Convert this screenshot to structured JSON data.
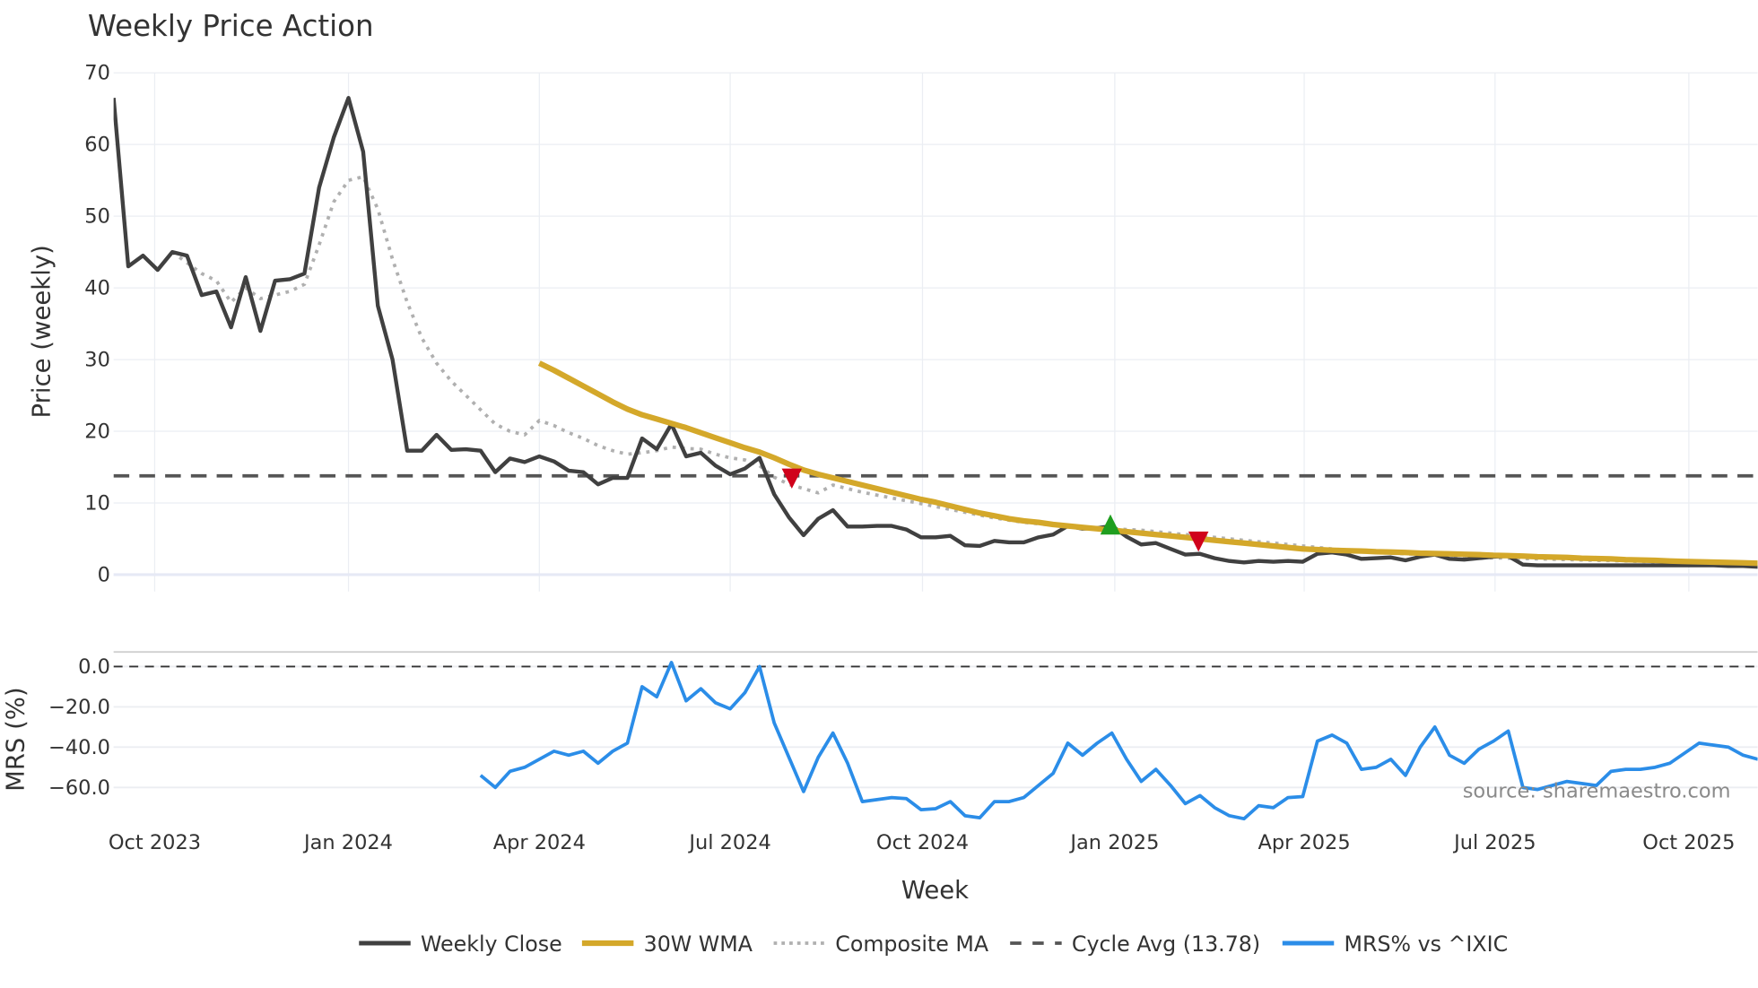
{
  "chart_data": [
    {
      "type": "line",
      "title": "Weekly Price Action",
      "xlabel": "Week",
      "ylabel": "Price (weekly)",
      "ylim": [
        0,
        70
      ],
      "yticks": [
        "0",
        "10",
        "20",
        "30",
        "40",
        "50",
        "60",
        "70"
      ],
      "ytick_values": [
        0,
        10,
        20,
        30,
        40,
        50,
        60,
        70
      ],
      "x_unit": "week index (0 = first weekly bar, mid-Sep 2023)",
      "n_weeks": 113,
      "xticks": [
        {
          "label": "Oct 2023",
          "week": 2.8
        },
        {
          "label": "Jan 2024",
          "week": 16.0
        },
        {
          "label": "Apr 2024",
          "week": 29.0
        },
        {
          "label": "Jul 2024",
          "week": 42.0
        },
        {
          "label": "Oct 2024",
          "week": 55.1
        },
        {
          "label": "Jan 2025",
          "week": 68.2
        },
        {
          "label": "Apr 2025",
          "week": 81.1
        },
        {
          "label": "Jul 2025",
          "week": 94.1
        },
        {
          "label": "Oct 2025",
          "week": 107.3
        }
      ],
      "series": [
        {
          "name": "Weekly Close",
          "color": "#404040",
          "start": 0,
          "values": [
            66.5,
            43,
            44.5,
            42.5,
            45,
            44.5,
            39,
            39.5,
            34.5,
            41.5,
            34,
            41,
            41.2,
            42,
            54,
            61,
            66.5,
            59,
            37.5,
            30,
            17.3,
            17.3,
            19.5,
            17.4,
            17.5,
            17.3,
            14.3,
            16.2,
            15.7,
            16.5,
            15.8,
            14.5,
            14.3,
            12.6,
            13.5,
            13.5,
            19,
            17.5,
            21,
            16.5,
            17,
            15.2,
            14,
            14.8,
            16.3,
            11.2,
            8,
            5.5,
            7.8,
            9,
            6.7,
            6.7,
            6.8,
            6.8,
            6.3,
            5.2,
            5.2,
            5.4,
            4.1,
            4,
            4.7,
            4.5,
            4.5,
            5.2,
            5.6,
            6.8,
            6.4,
            6.5,
            6.8,
            5.3,
            4.2,
            4.4,
            3.6,
            2.8,
            2.9,
            2.3,
            1.9,
            1.7,
            1.9,
            1.8,
            1.9,
            1.8,
            2.9,
            3.1,
            2.8,
            2.2,
            2.3,
            2.4,
            2.0,
            2.5,
            2.8,
            2.2,
            2.1,
            2.3,
            2.5,
            2.6,
            1.4,
            1.3,
            1.3,
            1.3,
            1.3,
            1.3,
            1.3,
            1.3,
            1.3,
            1.3,
            1.3,
            1.3,
            1.3,
            1.3,
            1.2,
            1.2,
            1.1
          ]
        },
        {
          "name": "30W WMA",
          "color": "#d4a82a",
          "start": 29,
          "values": [
            29.5,
            28.5,
            27.4,
            26.3,
            25.2,
            24.1,
            23.1,
            22.3,
            21.7,
            21.1,
            20.5,
            19.8,
            19.1,
            18.4,
            17.7,
            17.1,
            16.3,
            15.4,
            14.6,
            14.0,
            13.5,
            13.0,
            12.5,
            12.0,
            11.5,
            11.0,
            10.5,
            10.1,
            9.6,
            9.1,
            8.6,
            8.2,
            7.8,
            7.5,
            7.3,
            7.0,
            6.8,
            6.6,
            6.4,
            6.2,
            6.0,
            5.8,
            5.6,
            5.4,
            5.2,
            5.0,
            4.8,
            4.6,
            4.4,
            4.2,
            4.0,
            3.8,
            3.6,
            3.5,
            3.4,
            3.35,
            3.3,
            3.2,
            3.15,
            3.1,
            3.0,
            2.95,
            2.9,
            2.85,
            2.8,
            2.7,
            2.65,
            2.6,
            2.5,
            2.45,
            2.4,
            2.3,
            2.25,
            2.2,
            2.1,
            2.05,
            2.0,
            1.9,
            1.85,
            1.8,
            1.75,
            1.7,
            1.65,
            1.6
          ]
        },
        {
          "name": "Composite MA",
          "color": "#b0b0b0",
          "start": 4,
          "values": [
            45,
            43.5,
            42,
            41,
            38,
            40,
            38.5,
            39,
            39.5,
            40.5,
            46,
            52,
            55,
            55.5,
            51,
            44,
            38,
            33,
            29.5,
            27,
            25,
            23,
            21,
            20,
            19.5,
            21.5,
            20.8,
            19.8,
            19,
            18,
            17.3,
            16.8,
            17,
            17.3,
            17.8,
            17.6,
            17.5,
            16.8,
            16.3,
            16,
            15.2,
            13.6,
            12.6,
            12,
            11.4,
            12.5,
            12,
            11.5,
            11.1,
            10.7,
            10.3,
            9.9,
            9.5,
            9.1,
            8.7,
            8.3,
            7.9,
            7.6,
            7.3,
            7.1,
            6.9,
            6.7,
            6.6,
            6.5,
            6.4,
            6.3,
            6.2,
            6.0,
            5.8,
            5.6,
            5.4,
            5.2,
            5.0,
            4.8,
            4.6,
            4.4,
            4.2,
            4.0,
            3.8,
            3.6,
            3.4,
            3.2,
            3.1,
            3.0,
            2.9,
            2.8,
            2.7,
            2.6,
            2.5,
            2.4,
            2.35,
            2.3,
            2.25,
            2.2,
            2.15,
            2.1,
            2.05,
            2.0,
            1.95,
            1.9,
            1.85,
            1.8,
            1.75,
            1.7,
            1.65,
            1.6,
            1.55,
            1.5,
            1.45
          ]
        }
      ],
      "cycle_avg": {
        "name": "Cycle Avg (13.78)",
        "value": 13.78,
        "color": "#555555"
      },
      "markers": [
        {
          "type": "sell",
          "week": 46.2,
          "price": 13.4,
          "color": "#d0021b"
        },
        {
          "type": "buy",
          "week": 67.9,
          "price": 7.0,
          "color": "#1f9e1f"
        },
        {
          "type": "sell",
          "week": 73.9,
          "price": 4.6,
          "color": "#d0021b"
        }
      ]
    },
    {
      "type": "line",
      "ylabel": "MRS (%)",
      "ylim": [
        -78,
        7
      ],
      "yticks": [
        "0.0",
        "−20.0",
        "−40.0",
        "−60.0"
      ],
      "ytick_values": [
        0,
        -20,
        -40,
        -60
      ],
      "series": [
        {
          "name": "MRS% vs ^IXIC",
          "color": "#2b8de8",
          "start": 25,
          "values": [
            -54,
            -60,
            -52,
            -50,
            -46,
            -42,
            -44,
            -42,
            -48,
            -42,
            -38,
            -10,
            -15,
            2,
            -17,
            -11,
            -18,
            -21,
            -13,
            0,
            -28,
            -45,
            -62,
            -45,
            -33,
            -48,
            -67,
            -66,
            -65,
            -65.5,
            -71,
            -70.5,
            -67,
            -74,
            -75,
            -67,
            -67,
            -65,
            -59,
            -53,
            -38,
            -44,
            -38,
            -33,
            -46,
            -57,
            -51,
            -59,
            -68,
            -64,
            -70,
            -74,
            -75.5,
            -69,
            -70,
            -65,
            -64.5,
            -37,
            -34,
            -38,
            -51,
            -50,
            -46,
            -54,
            -40,
            -30,
            -44,
            -48,
            -41,
            -37,
            -32,
            -60,
            -61,
            -59,
            -57,
            -58,
            -59,
            -52,
            -51,
            -51,
            -50,
            -48,
            -43,
            -38,
            -39,
            -40,
            -44,
            -46
          ]
        }
      ],
      "reference_line": 0
    }
  ],
  "legend": {
    "placement": "bottom-center",
    "items": [
      "Weekly Close",
      "30W WMA",
      "Composite MA",
      "Cycle Avg (13.78)",
      "MRS% vs ^IXIC"
    ]
  },
  "annotation": "source: sharemaestro.com"
}
